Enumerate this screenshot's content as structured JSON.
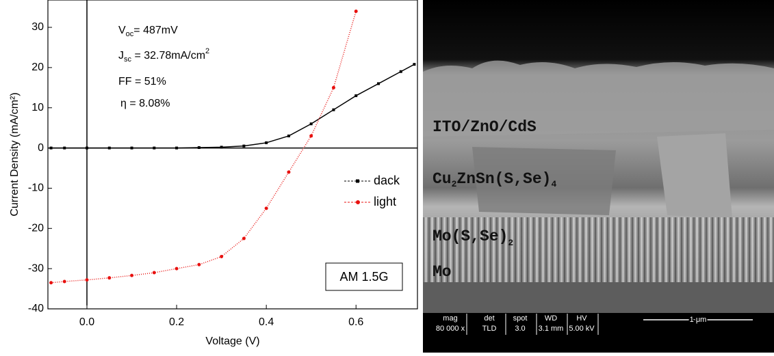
{
  "chart_data": {
    "type": "line",
    "x_label": "Voltage (V)",
    "y_label": "Current Density (mA/cm²)",
    "x": [
      -0.08,
      -0.05,
      0,
      0.05,
      0.1,
      0.15,
      0.2,
      0.25,
      0.3,
      0.35,
      0.4,
      0.45,
      0.5,
      0.55,
      0.6,
      0.65,
      0.7,
      0.73
    ],
    "series": [
      {
        "name": "dack",
        "color": "#000000",
        "marker": "square",
        "values": [
          0,
          0,
          0,
          0,
          0,
          0,
          0,
          0.1,
          0.2,
          0.5,
          1.3,
          3,
          6,
          9.5,
          13,
          16,
          19,
          20.8
        ]
      },
      {
        "name": "light",
        "color": "#e8110f",
        "marker": "circle",
        "values": [
          -33.5,
          -33.2,
          -32.8,
          -32.3,
          -31.7,
          -31,
          -30,
          -29,
          -27,
          -22.5,
          -15,
          -6,
          3,
          15,
          34,
          null,
          null,
          null
        ]
      }
    ],
    "xlim": [
      -0.087,
      0.737
    ],
    "xticks": [
      {
        "value": 0,
        "label": "0.0"
      },
      0.2,
      0.4,
      0.6
    ],
    "ylim": [
      -40,
      36.8
    ],
    "yticks": [
      -40,
      -30,
      -20,
      -10,
      0,
      10,
      20,
      30
    ],
    "annotations": [
      [
        {
          "text": "V"
        },
        {
          "sub": "oc"
        },
        {
          "text": "= 487mV"
        }
      ],
      [
        {
          "text": "J"
        },
        {
          "sub": "sc"
        },
        {
          "text": " = 32.78mA/cm"
        },
        {
          "sup": "2"
        }
      ],
      [
        {
          "text": "FF = 51%"
        }
      ],
      [
        {
          "text": "η = 8.08%"
        }
      ]
    ],
    "box_label": "AM 1.5G"
  },
  "image": {
    "layers": [
      "ITO/ZnO/CdS",
      "Cu",
      "2",
      "ZnSn(S,Se)",
      "4",
      "Mo(S,Se)",
      "2",
      "Mo"
    ],
    "info": [
      [
        "mag",
        "80 000 x"
      ],
      [
        "det",
        "TLD"
      ],
      [
        "spot",
        "3.0"
      ],
      [
        "WD",
        "3.1 mm"
      ],
      [
        "HV",
        "5.00 kV"
      ]
    ],
    "scale": "1 μm"
  }
}
